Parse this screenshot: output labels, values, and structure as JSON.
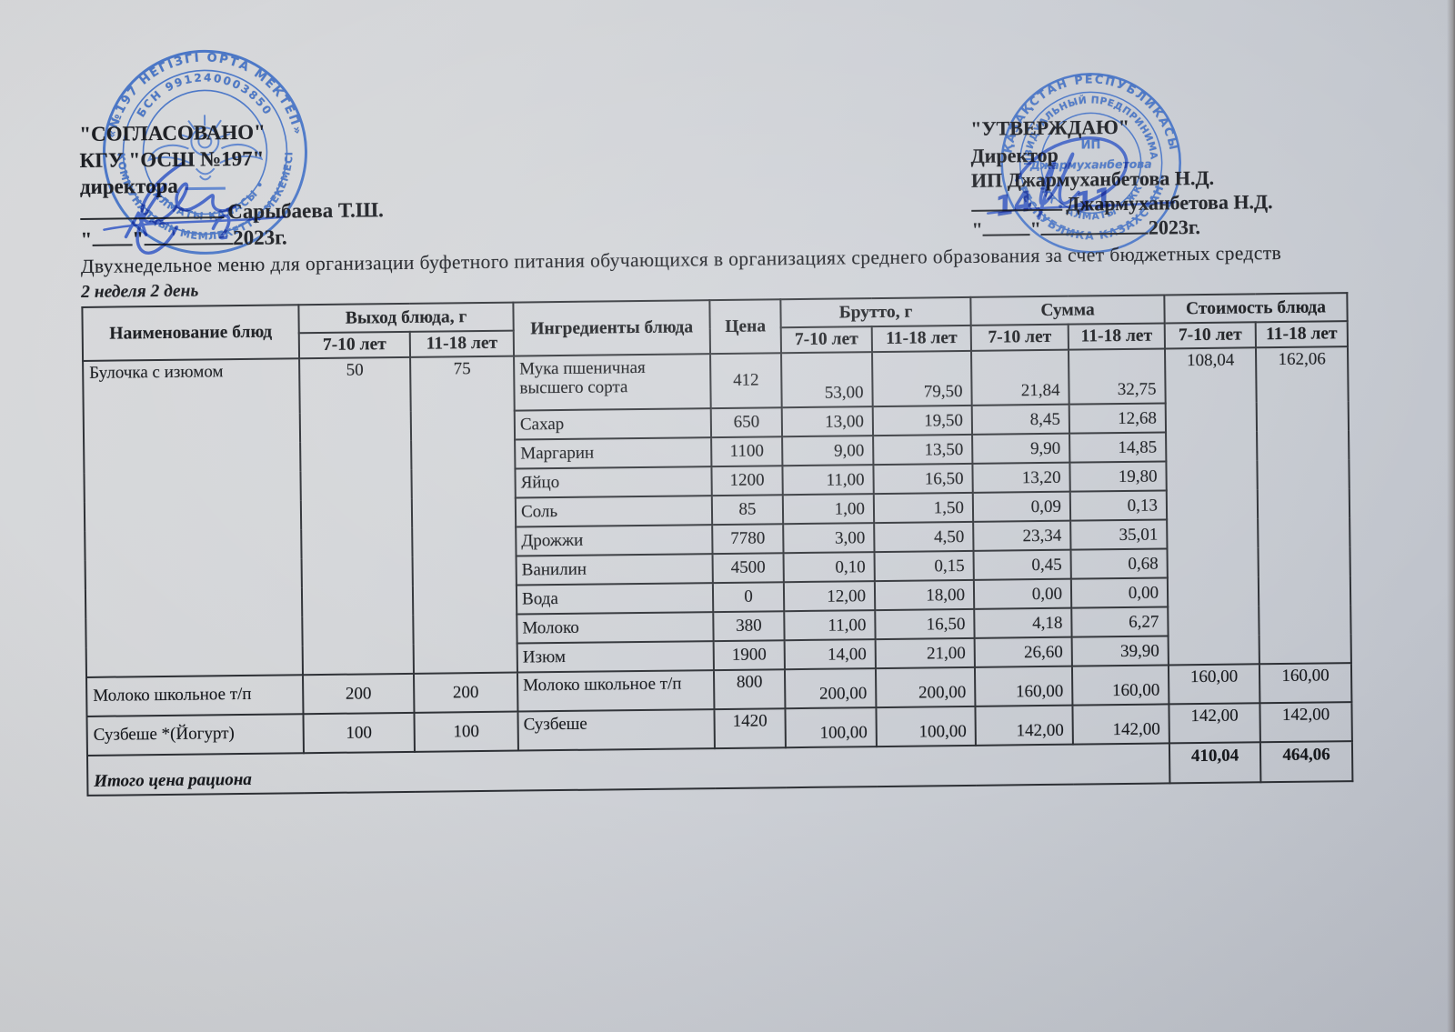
{
  "colors": {
    "stamp_blue": "#3f6fc6",
    "ink_blue": "#2f55c4",
    "paper_light": "#d8d9db",
    "paper_dark": "#bcc0c9",
    "text": "#1c1e23",
    "table_border": "#2c2f34"
  },
  "left_block": {
    "line1": "\"СОГЛАСОВАНО\"",
    "line2": "КГУ \"ОСШ №197\"",
    "line3": "директора",
    "signer_name": "Сарыбаева Т.Ш.",
    "date_quote_open": "\"",
    "date_quote_close": "\"",
    "year": "2023г."
  },
  "right_block": {
    "line1": "\"УТВЕРЖДАЮ\"",
    "line2": "Директор",
    "line3": "ИП Джармуханбетова Н.Д.",
    "signer_name": "Джармуханбетова Н.Д.",
    "handwritten_day": "14",
    "handwritten_month": "11",
    "date_quote_open": "\"",
    "date_quote_close": "\"",
    "year": "2023г."
  },
  "title": "Двухнедельное меню для организации буфетного питания обучающихся в организациях среднего образования за счет бюджетных средств",
  "subtitle": "2 неделя 2 день",
  "stamps": {
    "left": {
      "ring_outer_top": "«№197 НЕГІЗГІ ОРТА МЕКТЕП»",
      "ring_outer_bottom": "КОММУНАЛДЫҚ МЕМЛЕКЕТТІК МЕКЕМЕСІ",
      "ring_inner_top": "БСН 991240003850",
      "ring_inner_bottom": "• АЛМАТЫ ҚАЛАСЫ •"
    },
    "right": {
      "ring_outer_top": "ҚАЗАҚСТАН РЕСПУБЛИКАСЫ",
      "ring_outer_bottom": "• РЕСПУБЛИКА КАЗАХСТАН •",
      "ring_inner_top": "ИНДИВИДУАЛЬНЫЙ ПРЕДПРИНИМАТЕЛЬ",
      "ring_inner_bottom": "• ЖК • АЛМАТЫ • ЖК •",
      "center_line1": "ИП",
      "center_line2": "Джармуханбетова"
    }
  },
  "table": {
    "headers": {
      "name": "Наименование блюд",
      "yield": "Выход блюда, г",
      "ingredients": "Ингредиенты блюда",
      "price": "Цена",
      "gross": "Брутто, г",
      "sum": "Сумма",
      "cost": "Стоимость блюда",
      "age_young": "7-10 лет",
      "age_old": "11-18 лет"
    },
    "dishes": [
      {
        "name": "Булочка с изюмом",
        "yield_7_10": "50",
        "yield_11_18": "75",
        "cost_7_10": "108,04",
        "cost_11_18": "162,06",
        "ingredients": [
          {
            "name": "Мука пшеничная высшего сорта",
            "price": "412",
            "gross_7_10": "53,00",
            "gross_11_18": "79,50",
            "sum_7_10": "21,84",
            "sum_11_18": "32,75"
          },
          {
            "name": "Сахар",
            "price": "650",
            "gross_7_10": "13,00",
            "gross_11_18": "19,50",
            "sum_7_10": "8,45",
            "sum_11_18": "12,68"
          },
          {
            "name": "Маргарин",
            "price": "1100",
            "gross_7_10": "9,00",
            "gross_11_18": "13,50",
            "sum_7_10": "9,90",
            "sum_11_18": "14,85"
          },
          {
            "name": "Яйцо",
            "price": "1200",
            "gross_7_10": "11,00",
            "gross_11_18": "16,50",
            "sum_7_10": "13,20",
            "sum_11_18": "19,80"
          },
          {
            "name": "Соль",
            "price": "85",
            "gross_7_10": "1,00",
            "gross_11_18": "1,50",
            "sum_7_10": "0,09",
            "sum_11_18": "0,13"
          },
          {
            "name": "Дрожжи",
            "price": "7780",
            "gross_7_10": "3,00",
            "gross_11_18": "4,50",
            "sum_7_10": "23,34",
            "sum_11_18": "35,01"
          },
          {
            "name": "Ванилин",
            "price": "4500",
            "gross_7_10": "0,10",
            "gross_11_18": "0,15",
            "sum_7_10": "0,45",
            "sum_11_18": "0,68"
          },
          {
            "name": "Вода",
            "price": "0",
            "gross_7_10": "12,00",
            "gross_11_18": "18,00",
            "sum_7_10": "0,00",
            "sum_11_18": "0,00"
          },
          {
            "name": "Молоко",
            "price": "380",
            "gross_7_10": "11,00",
            "gross_11_18": "16,50",
            "sum_7_10": "4,18",
            "sum_11_18": "6,27"
          },
          {
            "name": "Изюм",
            "price": "1900",
            "gross_7_10": "14,00",
            "gross_11_18": "21,00",
            "sum_7_10": "26,60",
            "sum_11_18": "39,90"
          }
        ]
      },
      {
        "name": "Молоко школьное т/п",
        "yield_7_10": "200",
        "yield_11_18": "200",
        "cost_7_10": "160,00",
        "cost_11_18": "160,00",
        "ingredients": [
          {
            "name": "Молоко школьное т/п",
            "price": "800",
            "gross_7_10": "200,00",
            "gross_11_18": "200,00",
            "sum_7_10": "160,00",
            "sum_11_18": "160,00"
          }
        ]
      },
      {
        "name": "Сузбеше *(Йогурт)",
        "yield_7_10": "100",
        "yield_11_18": "100",
        "cost_7_10": "142,00",
        "cost_11_18": "142,00",
        "ingredients": [
          {
            "name": "Сузбеше",
            "price": "1420",
            "gross_7_10": "100,00",
            "gross_11_18": "100,00",
            "sum_7_10": "142,00",
            "sum_11_18": "142,00"
          }
        ]
      }
    ],
    "total": {
      "label": "Итого цена рациона",
      "cost_7_10": "410,04",
      "cost_11_18": "464,06"
    }
  }
}
